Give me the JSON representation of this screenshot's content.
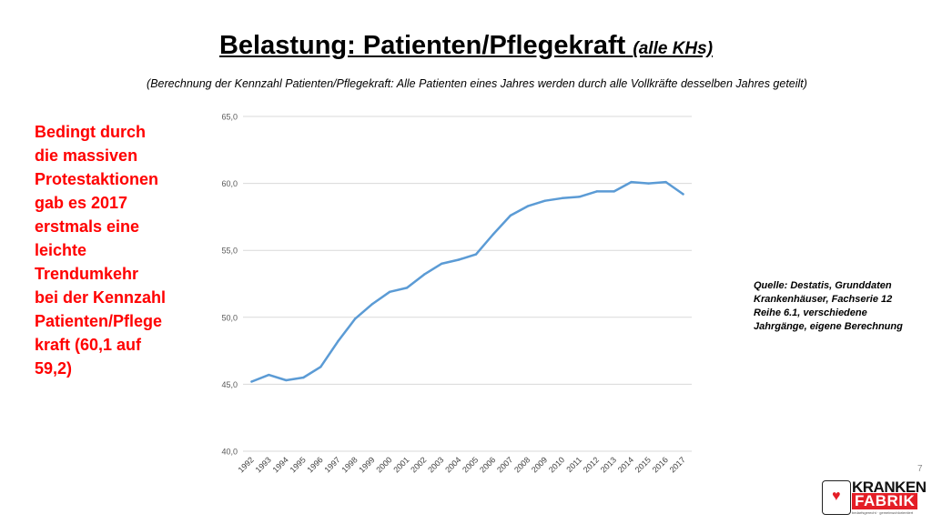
{
  "slide": {
    "title": "Belastung: Patienten/Pflegekraft",
    "title_suffix": "(alle KHs)",
    "subtitle": "(Berechnung der Kennzahl Patienten/Pflegekraft: Alle Patienten eines Jahres werden durch alle Vollkräfte desselben Jahres geteilt)",
    "note": "Bedingt durch\ndie massiven\nProtestaktionen\ngab es 2017\nerstmals eine\nleichte\nTrendumkehr\nbei der Kennzahl\nPatienten/Pflege\nkraft (60,1 auf\n59,2)",
    "source": "Quelle: Destatis, Grunddaten\nKrankenhäuser, Fachserie 12\nReihe 6.1, verschiedene\nJahrgänge, eigene Berechnung",
    "page_number": "7",
    "logo": {
      "line1": "KRANKEN",
      "line2": "FABRIK",
      "tagline": "bedarfsgerecht · gemeinwohlorientiert",
      "accent_color": "#e41e26"
    },
    "note_color": "#ff0000"
  },
  "chart_data": {
    "type": "line",
    "title": "",
    "xlabel": "",
    "ylabel": "",
    "x": [
      "1992",
      "1993",
      "1994",
      "1995",
      "1996",
      "1997",
      "1998",
      "1999",
      "2000",
      "2001",
      "2002",
      "2003",
      "2004",
      "2005",
      "2006",
      "2007",
      "2008",
      "2009",
      "2010",
      "2011",
      "2012",
      "2013",
      "2014",
      "2015",
      "2016",
      "2017"
    ],
    "series": [
      {
        "values": [
          45.2,
          45.7,
          45.3,
          45.5,
          46.3,
          48.2,
          49.9,
          51.0,
          51.9,
          52.2,
          53.2,
          54.0,
          54.3,
          54.7,
          56.2,
          57.6,
          58.3,
          58.7,
          58.9,
          59.0,
          59.4,
          59.4,
          60.1,
          60.0,
          60.1,
          59.2
        ],
        "color": "#5b9bd5"
      }
    ],
    "ylim": [
      40,
      65
    ],
    "yticks": [
      "40,0",
      "45,0",
      "50,0",
      "55,0",
      "60,0",
      "65,0"
    ],
    "grid": true,
    "legend": "none"
  }
}
